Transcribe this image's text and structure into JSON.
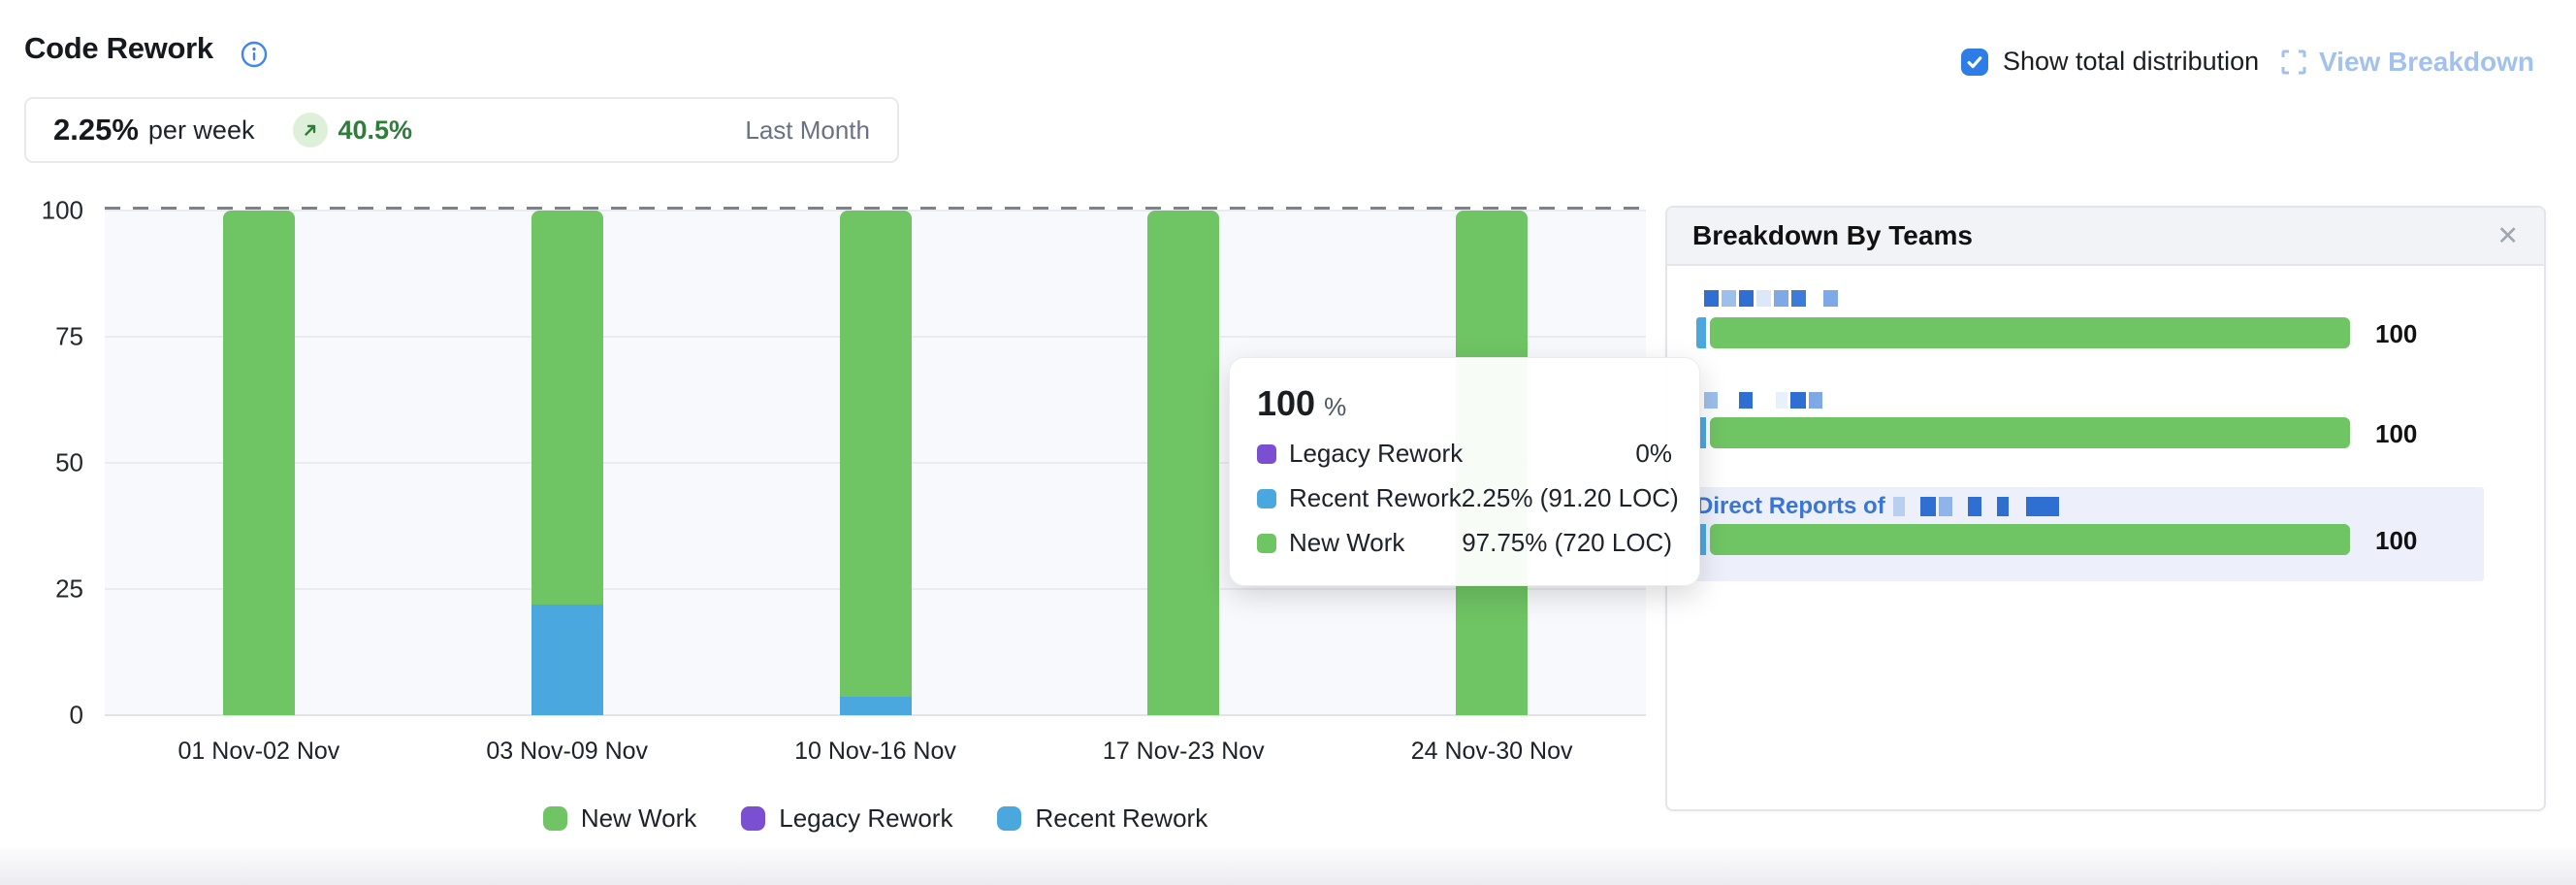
{
  "header": {
    "title": "Code Rework"
  },
  "controls": {
    "show_total_label": "Show total distribution",
    "checkbox_checked": true,
    "view_breakdown_label": "View Breakdown"
  },
  "stats": {
    "value": "2.25%",
    "unit": "per week",
    "change": "40.5%",
    "trend": "up",
    "period": "Last Month"
  },
  "colors": {
    "new_work": "#6fc463",
    "legacy_rework": "#7b4fd1",
    "recent_rework": "#4ba8de",
    "accent_blue": "#2e7ce5",
    "pale_blue": "#a3c1ef",
    "positive_green": "#2f7d3b"
  },
  "chart_data": [
    {
      "type": "bar",
      "stacked": true,
      "title": "Code Rework weekly % distribution",
      "categories": [
        "01 Nov-02 Nov",
        "03 Nov-09 Nov",
        "10 Nov-16 Nov",
        "17 Nov-23 Nov",
        "24 Nov-30 Nov"
      ],
      "stack_order": "bottom_to_top",
      "series": [
        {
          "name": "Recent Rework",
          "color": "#4ba8de",
          "values": [
            0,
            22,
            3.6,
            0,
            0
          ]
        },
        {
          "name": "Legacy Rework",
          "color": "#7b4fd1",
          "values": [
            0,
            0,
            0,
            0,
            0
          ]
        },
        {
          "name": "New Work",
          "color": "#6fc463",
          "values": [
            100,
            78,
            96.4,
            100,
            100
          ]
        }
      ],
      "ylim": [
        0,
        100
      ],
      "yticks": [
        0,
        25,
        50,
        75,
        100
      ],
      "grid": true,
      "dashed_reference_line": 100,
      "legend_position": "bottom"
    },
    {
      "type": "bar",
      "orientation": "horizontal",
      "title": "Breakdown By Teams",
      "categories": [
        "[redacted team]",
        "[redacted team]",
        "Direct Reports of [redacted]"
      ],
      "values": [
        100,
        100,
        100
      ],
      "value_labels": [
        "100",
        "100",
        "100"
      ]
    }
  ],
  "legend": [
    {
      "label": "New Work",
      "color": "#6fc463"
    },
    {
      "label": "Legacy Rework",
      "color": "#7b4fd1"
    },
    {
      "label": "Recent Rework",
      "color": "#4ba8de"
    }
  ],
  "tooltip": {
    "total": "100",
    "total_unit": "%",
    "rows": [
      {
        "label": "Legacy Rework",
        "color": "#7b4fd1",
        "value": "0%"
      },
      {
        "label": "Recent Rework",
        "color": "#4ba8de",
        "value": "2.25% (91.20 LOC)"
      },
      {
        "label": "New Work",
        "color": "#6fc463",
        "value": "97.75% (720 LOC)"
      }
    ]
  },
  "breakdown_panel": {
    "title": "Breakdown By Teams",
    "close_glyph": "✕",
    "rows": [
      {
        "prefix": "",
        "highlight": false,
        "value": "100",
        "segments": [
          {
            "color": "#4ba8de",
            "pct": 1.5
          },
          {
            "color": "#6fc463",
            "pct": 98.5
          }
        ],
        "name_blocks": [
          [
            15,
            "#2e6fd1"
          ],
          [
            15,
            "#9dbfec"
          ],
          [
            15,
            "#2e6fd1"
          ],
          [
            15,
            "#dce7f8"
          ],
          [
            15,
            "#7fa8e6"
          ],
          [
            15,
            "#3d7bd8"
          ],
          [
            12,
            null
          ],
          [
            15,
            "#7fa8e6"
          ]
        ]
      },
      {
        "prefix": "",
        "highlight": false,
        "value": "100",
        "segments": [
          {
            "color": "#4ba8de",
            "pct": 1.5
          },
          {
            "color": "#6fc463",
            "pct": 98.5
          }
        ],
        "name_blocks": [
          [
            14,
            "#9dbfec"
          ],
          [
            16,
            null
          ],
          [
            14,
            "#2e6fd1"
          ],
          [
            18,
            null
          ],
          [
            12,
            "#e8f0fb"
          ],
          [
            16,
            "#2e6fd1"
          ],
          [
            14,
            "#7fa8e6"
          ]
        ]
      },
      {
        "prefix": "Direct Reports of",
        "highlight": true,
        "value": "100",
        "segments": [
          {
            "color": "#4ba8de",
            "pct": 1.5
          },
          {
            "color": "#6fc463",
            "pct": 98.5
          }
        ],
        "name_blocks": [
          [
            12,
            "#b9cff2"
          ],
          [
            10,
            null
          ],
          [
            16,
            "#2e6fd1"
          ],
          [
            14,
            "#8fb4ea"
          ],
          [
            10,
            null
          ],
          [
            14,
            "#2e6fd1"
          ],
          [
            10,
            null
          ],
          [
            12,
            "#2e6fd1"
          ],
          [
            12,
            null
          ],
          [
            34,
            "#2e6fd1"
          ]
        ]
      }
    ]
  }
}
